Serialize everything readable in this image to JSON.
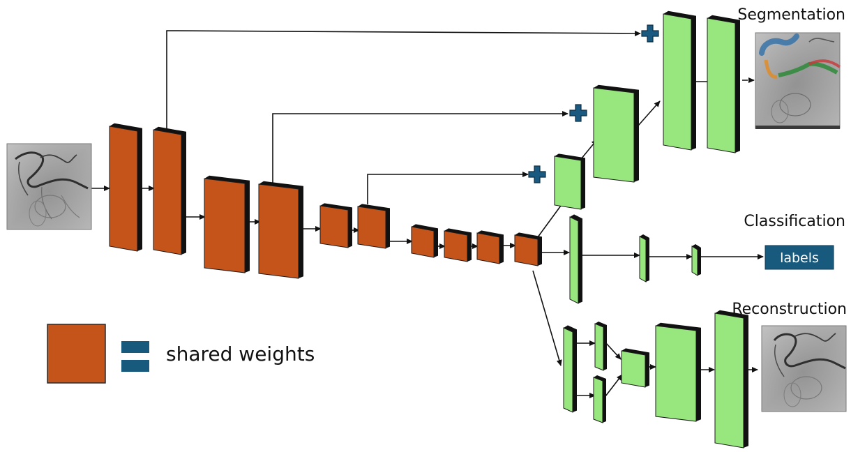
{
  "heads": {
    "segmentation": "Segmentation",
    "classification": "Classification",
    "reconstruction": "Reconstruction"
  },
  "output_box_label": "labels",
  "legend": {
    "label": "shared weights"
  },
  "colors": {
    "encoder_block": "#c5541b",
    "decoder_block": "#98e67e",
    "block_shadow": "#111111",
    "skip_plus": "#1a5a80",
    "labels_box": "#175a7e",
    "equals_sign": "#175a7e"
  },
  "icons": {
    "skip_connection": "plus-icon",
    "legend_equals": "equals-icon"
  },
  "images": {
    "input": "input-angiogram-image",
    "segmentation_output": "segmentation-output-image",
    "reconstruction_output": "reconstruction-output-image"
  }
}
